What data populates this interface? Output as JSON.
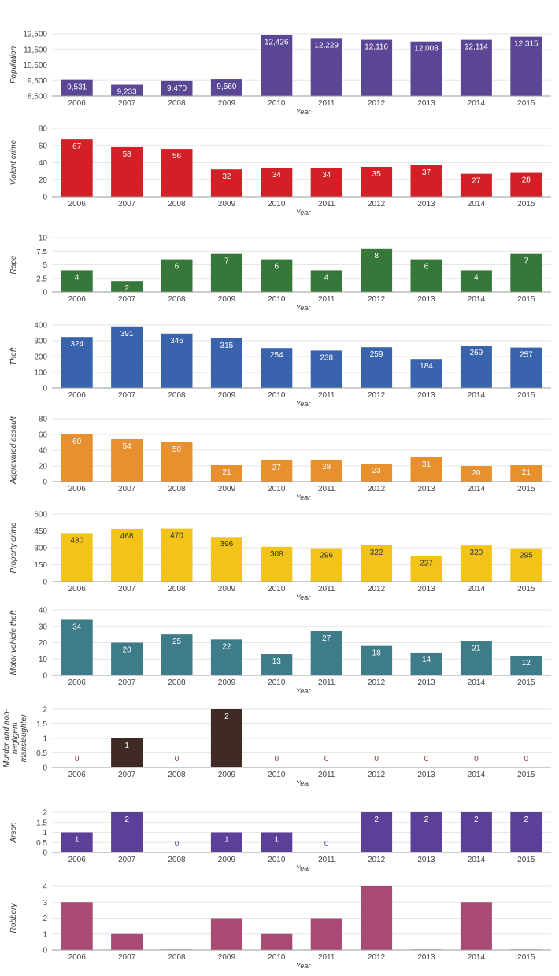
{
  "chart_data": [
    {
      "type": "bar",
      "title": "",
      "xlabel": "Year",
      "ylabel": "Population",
      "categories": [
        "2006",
        "2007",
        "2008",
        "2009",
        "2010",
        "2011",
        "2012",
        "2013",
        "2014",
        "2015"
      ],
      "values": [
        9531,
        9233,
        9470,
        9560,
        12426,
        12229,
        12116,
        12008,
        12114,
        12315
      ],
      "data_labels": [
        "9,531",
        "9,233",
        "9,470",
        "9,560",
        "12,426",
        "12,229",
        "12,116",
        "12,008",
        "12,114",
        "12,315"
      ],
      "ylim": [
        8500,
        12500
      ],
      "yticks": [
        "8,500",
        "9,500",
        "10,500",
        "11,500",
        "12,500"
      ],
      "ytick_values": [
        8500,
        9500,
        10500,
        11500,
        12500
      ],
      "color": "#5b4696",
      "label_color": "#ffffff",
      "grid": true
    },
    {
      "type": "bar",
      "xlabel": "Year",
      "ylabel": "Violent crime",
      "categories": [
        "2006",
        "2007",
        "2008",
        "2009",
        "2010",
        "2011",
        "2012",
        "2013",
        "2014",
        "2015"
      ],
      "values": [
        67,
        58,
        56,
        32,
        34,
        34,
        35,
        37,
        27,
        28
      ],
      "data_labels": [
        "67",
        "58",
        "56",
        "32",
        "34",
        "34",
        "35",
        "37",
        "27",
        "28"
      ],
      "ylim": [
        0,
        80
      ],
      "yticks": [
        "0",
        "20",
        "40",
        "60",
        "80"
      ],
      "ytick_values": [
        0,
        20,
        40,
        60,
        80
      ],
      "color": "#d32027",
      "label_color": "#ffffff",
      "grid": true
    },
    {
      "type": "bar",
      "xlabel": "Year",
      "ylabel": "Rape",
      "categories": [
        "2006",
        "2007",
        "2008",
        "2009",
        "2010",
        "2011",
        "2012",
        "2013",
        "2014",
        "2015"
      ],
      "values": [
        4,
        2,
        6,
        7,
        6,
        4,
        8,
        6,
        4,
        7
      ],
      "data_labels": [
        "4",
        "2",
        "6",
        "7",
        "6",
        "4",
        "8",
        "6",
        "4",
        "7"
      ],
      "ylim": [
        0,
        10
      ],
      "yticks": [
        "0",
        "2.5",
        "5",
        "7.5",
        "10"
      ],
      "ytick_values": [
        0,
        2.5,
        5,
        7.5,
        10
      ],
      "color": "#36773a",
      "label_color": "#ffffff",
      "grid": true
    },
    {
      "type": "bar",
      "xlabel": "Year",
      "ylabel": "Theft",
      "categories": [
        "2006",
        "2007",
        "2008",
        "2009",
        "2010",
        "2011",
        "2012",
        "2013",
        "2014",
        "2015"
      ],
      "values": [
        324,
        391,
        346,
        315,
        254,
        238,
        259,
        184,
        269,
        257
      ],
      "data_labels": [
        "324",
        "391",
        "346",
        "315",
        "254",
        "238",
        "259",
        "184",
        "269",
        "257"
      ],
      "ylim": [
        0,
        400
      ],
      "yticks": [
        "0",
        "100",
        "200",
        "300",
        "400"
      ],
      "ytick_values": [
        0,
        100,
        200,
        300,
        400
      ],
      "color": "#3a63ae",
      "label_color": "#ffffff",
      "grid": true
    },
    {
      "type": "bar",
      "xlabel": "Year",
      "ylabel": "Aggravated assault",
      "categories": [
        "2006",
        "2007",
        "2008",
        "2009",
        "2010",
        "2011",
        "2012",
        "2013",
        "2014",
        "2015"
      ],
      "values": [
        60,
        54,
        50,
        21,
        27,
        28,
        23,
        31,
        20,
        21
      ],
      "data_labels": [
        "60",
        "54",
        "50",
        "21",
        "27",
        "28",
        "23",
        "31",
        "20",
        "21"
      ],
      "ylim": [
        0,
        80
      ],
      "yticks": [
        "0",
        "20",
        "40",
        "60",
        "80"
      ],
      "ytick_values": [
        0,
        20,
        40,
        60,
        80
      ],
      "color": "#e8902e",
      "label_color": "#ffffff",
      "grid": true
    },
    {
      "type": "bar",
      "xlabel": "Year",
      "ylabel": "Property crime",
      "categories": [
        "2006",
        "2007",
        "2008",
        "2009",
        "2010",
        "2011",
        "2012",
        "2013",
        "2014",
        "2015"
      ],
      "values": [
        430,
        468,
        470,
        396,
        308,
        296,
        322,
        227,
        320,
        295
      ],
      "data_labels": [
        "430",
        "468",
        "470",
        "396",
        "308",
        "296",
        "322",
        "227",
        "320",
        "295"
      ],
      "ylim": [
        0,
        600
      ],
      "yticks": [
        "0",
        "150",
        "300",
        "450",
        "600"
      ],
      "ytick_values": [
        0,
        150,
        300,
        450,
        600
      ],
      "color": "#f2c319",
      "label_color": "#333333",
      "grid": true
    },
    {
      "type": "bar",
      "xlabel": "Year",
      "ylabel": "Motor vehicle theft",
      "categories": [
        "2006",
        "2007",
        "2008",
        "2009",
        "2010",
        "2011",
        "2012",
        "2013",
        "2014",
        "2015"
      ],
      "values": [
        34,
        20,
        25,
        22,
        13,
        27,
        18,
        14,
        21,
        12
      ],
      "data_labels": [
        "34",
        "20",
        "25",
        "22",
        "13",
        "27",
        "18",
        "14",
        "21",
        "12"
      ],
      "ylim": [
        0,
        40
      ],
      "yticks": [
        "0",
        "10",
        "20",
        "30",
        "40"
      ],
      "ytick_values": [
        0,
        10,
        20,
        30,
        40
      ],
      "color": "#3e7c8a",
      "label_color": "#ffffff",
      "grid": true
    },
    {
      "type": "bar",
      "xlabel": "Year",
      "ylabel": "Murder and non-negligent manslaughter",
      "ylabel_lines": [
        "Murder and non-",
        "negligent",
        "manslaughter"
      ],
      "categories": [
        "2006",
        "2007",
        "2008",
        "2009",
        "2010",
        "2011",
        "2012",
        "2013",
        "2014",
        "2015"
      ],
      "values": [
        0,
        1,
        0,
        2,
        0,
        0,
        0,
        0,
        0,
        0
      ],
      "data_labels": [
        "0",
        "1",
        "0",
        "2",
        "0",
        "0",
        "0",
        "0",
        "0",
        "0"
      ],
      "ylim": [
        0,
        2
      ],
      "yticks": [
        "0",
        "0.5",
        "1",
        "1.5",
        "2"
      ],
      "ytick_values": [
        0,
        0.5,
        1,
        1.5,
        2
      ],
      "color": "#3f2a26",
      "label_color": "#ffffff",
      "zero_label_color": "#8a3a2a",
      "grid": true
    },
    {
      "type": "bar",
      "xlabel": "Year",
      "ylabel": "Arson",
      "categories": [
        "2006",
        "2007",
        "2008",
        "2009",
        "2010",
        "2011",
        "2012",
        "2013",
        "2014",
        "2015"
      ],
      "values": [
        1,
        2,
        0,
        1,
        1,
        0,
        2,
        2,
        2,
        2
      ],
      "data_labels": [
        "1",
        "2",
        "0",
        "1",
        "1",
        "0",
        "2",
        "2",
        "2",
        "2"
      ],
      "ylim": [
        0,
        2
      ],
      "yticks": [
        "0",
        "0.5",
        "1",
        "1.5",
        "2"
      ],
      "ytick_values": [
        0,
        0.5,
        1,
        1.5,
        2
      ],
      "color": "#5b3f98",
      "label_color": "#ffffff",
      "zero_label_color": "#4a4aa0",
      "grid": true
    },
    {
      "type": "bar",
      "xlabel": "Year",
      "ylabel": "Robbery",
      "categories": [
        "2006",
        "2007",
        "2008",
        "2009",
        "2010",
        "2011",
        "2012",
        "2013",
        "2014",
        "2015"
      ],
      "values": [
        3,
        1,
        0,
        2,
        1,
        2,
        4,
        0,
        3,
        0
      ],
      "data_labels": [],
      "ylim": [
        0,
        4
      ],
      "yticks": [
        "0",
        "1",
        "2",
        "3",
        "4"
      ],
      "ytick_values": [
        0,
        1,
        2,
        3,
        4
      ],
      "color": "#a84a74",
      "label_color": "#ffffff",
      "grid": true
    }
  ]
}
